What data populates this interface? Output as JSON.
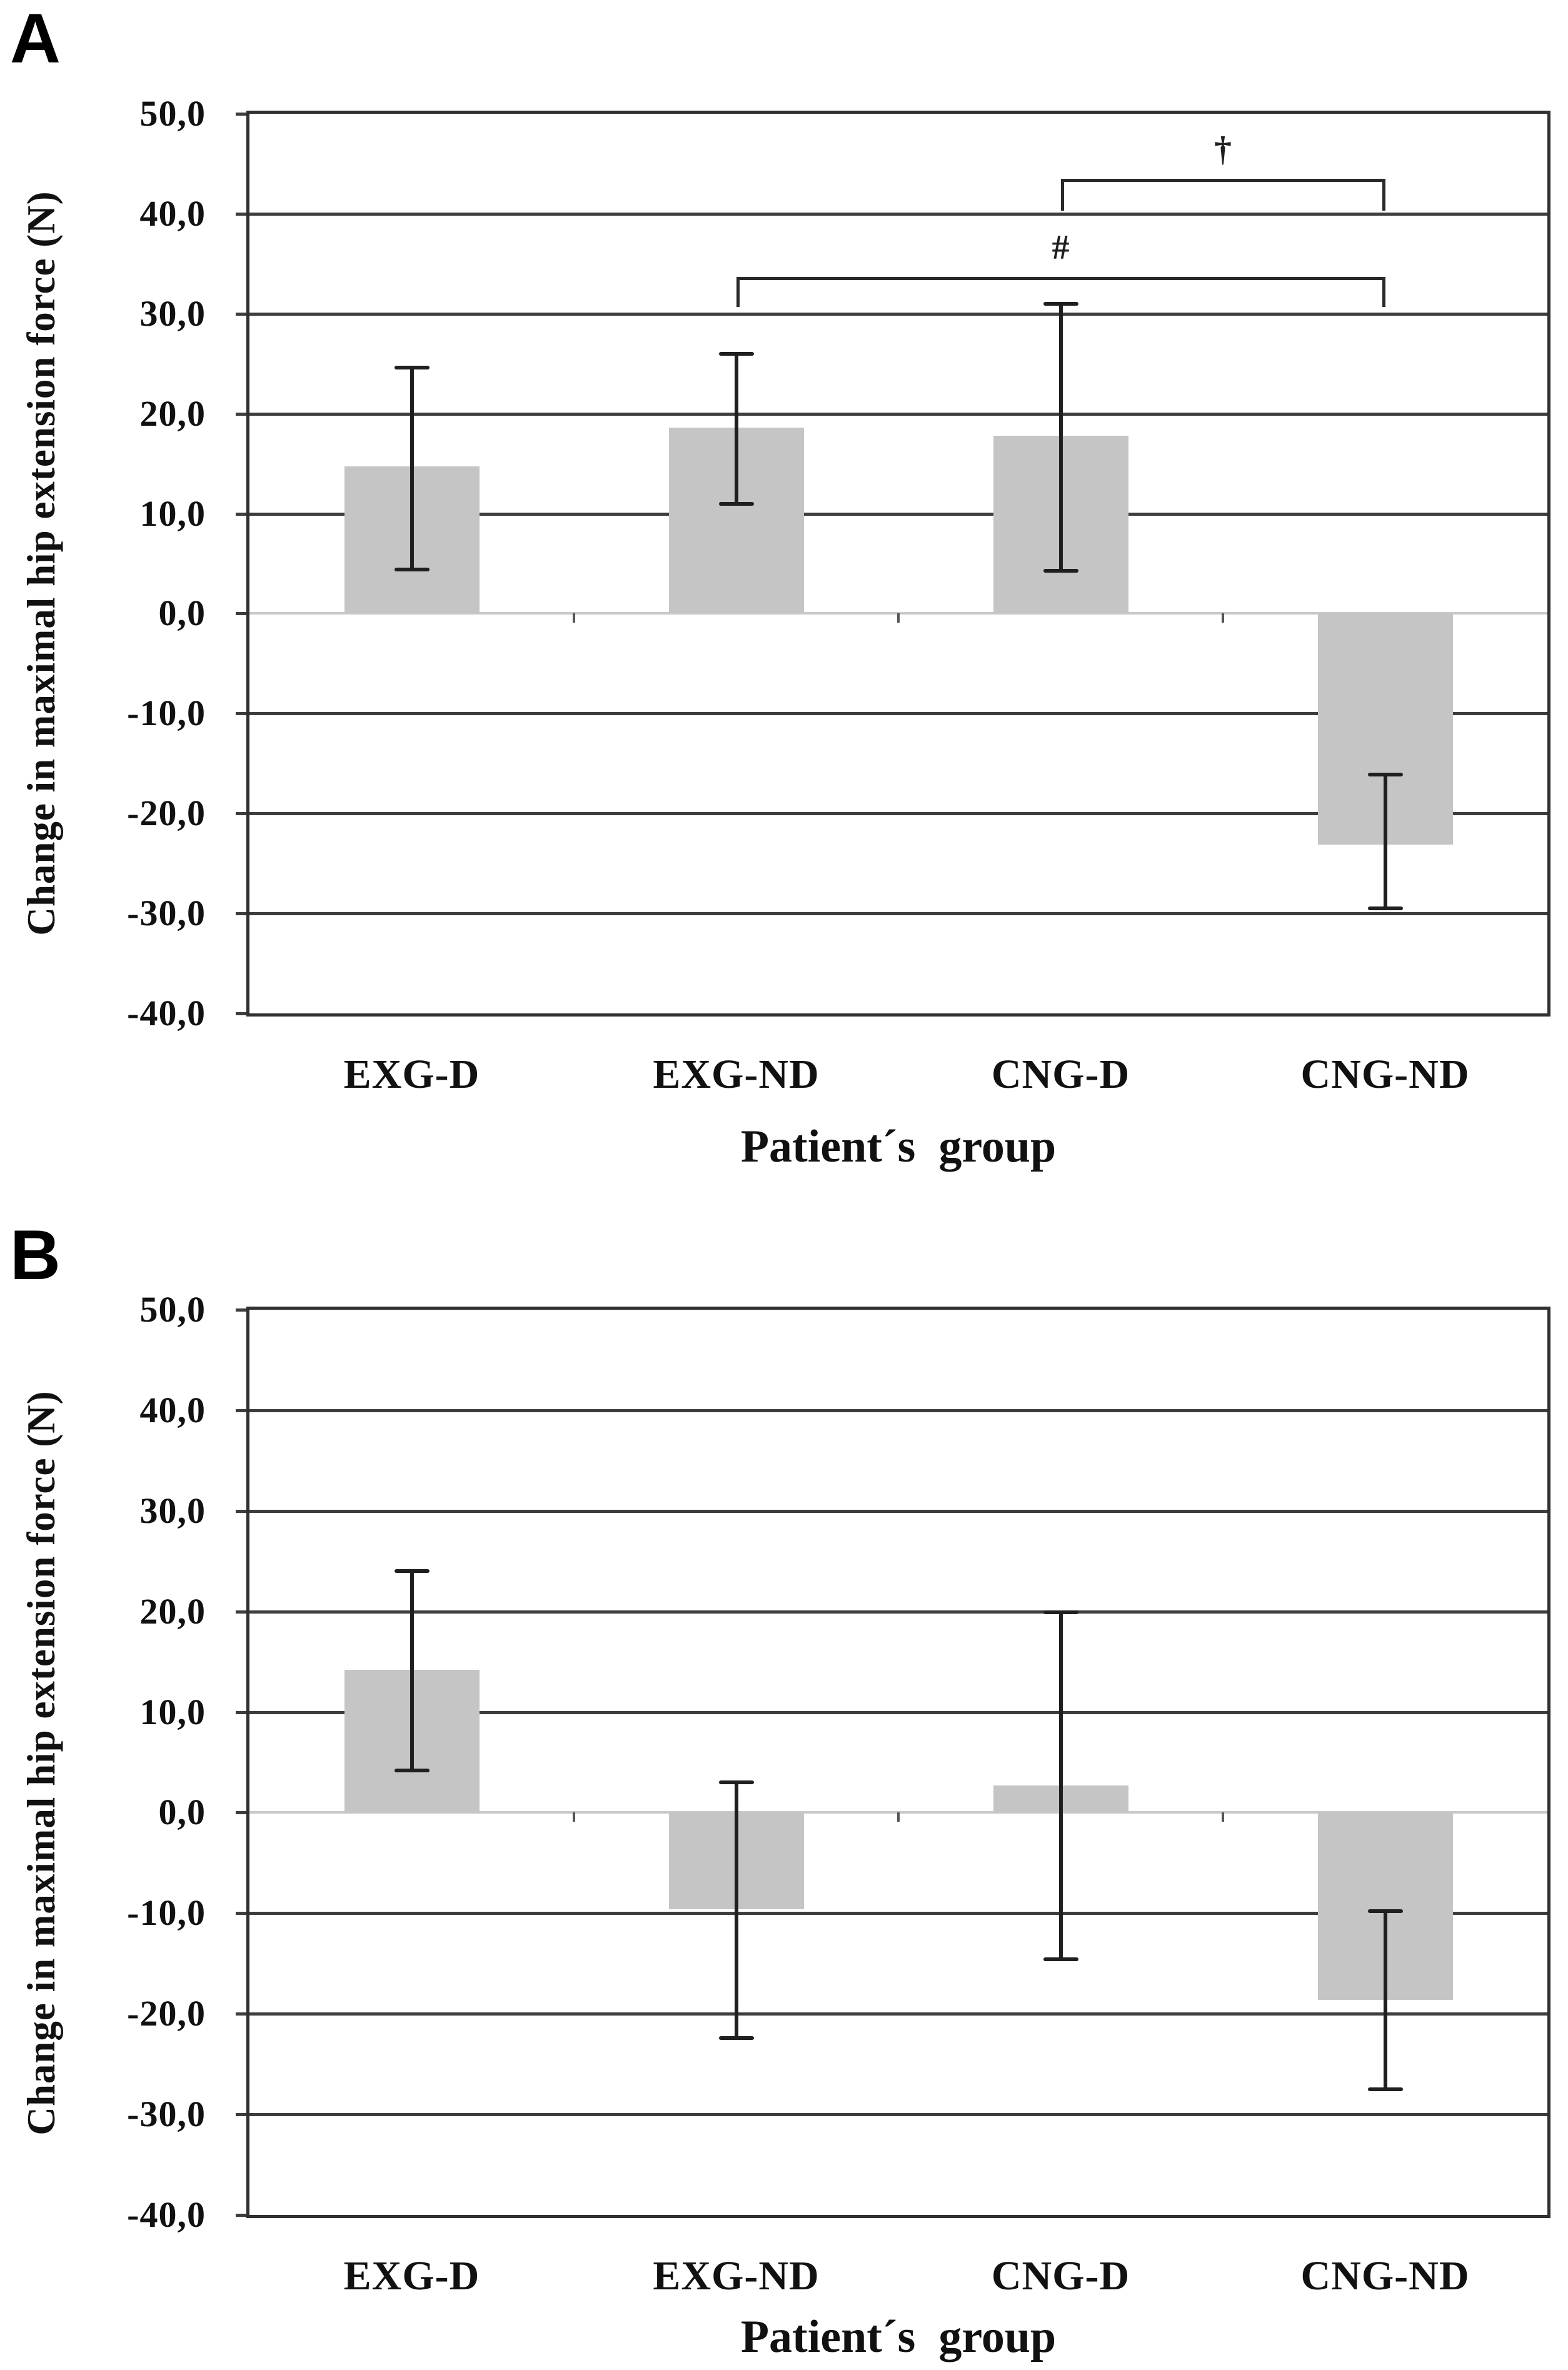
{
  "figure": {
    "panels": [
      {
        "label": "A"
      },
      {
        "label": "B"
      }
    ],
    "ylabel": "Change in maximal hip extension force (N)",
    "xlabel": "Patient´s  group",
    "colors": {
      "bar_fill": "#c5c5c5",
      "gridline": "#3d3d3d",
      "zero_line": "#c9c9c9",
      "error_bar": "#1f1f1f",
      "text": "#111111"
    }
  },
  "chart_data": [
    {
      "type": "bar",
      "panel": "A",
      "xlabel": "Patient´s  group",
      "ylabel": "Change in maximal hip extension force (N)",
      "categories": [
        "EXG-D",
        "EXG-ND",
        "CNG-D",
        "CNG-ND"
      ],
      "values": [
        14.7,
        18.6,
        17.8,
        -23.1
      ],
      "error_high": [
        24.6,
        26.0,
        31.0,
        -16.1
      ],
      "error_low": [
        4.4,
        11.0,
        4.3,
        -29.5
      ],
      "ylim": [
        -40,
        50
      ],
      "ytick_step": 10,
      "ytick_labels": [
        "50,0",
        "40,0",
        "30,0",
        "20,0",
        "10,0",
        "0,0",
        "-10,0",
        "-20,0",
        "-30,0",
        "-40,0"
      ],
      "grid": true,
      "annotations": [
        {
          "symbol": "†",
          "from_category": "CNG-D",
          "to_category": "CNG-ND",
          "from_index": 2,
          "to_index": 3,
          "bracket_y": 43.5,
          "bracket_tick_y": 40.3
        },
        {
          "symbol": "#",
          "from_category": "EXG-ND",
          "to_category": "CNG-ND",
          "from_index": 1,
          "to_index": 3,
          "bracket_y": 33.7,
          "bracket_tick_y": 30.7
        }
      ]
    },
    {
      "type": "bar",
      "panel": "B",
      "xlabel": "Patient´s  group",
      "ylabel": "Change in maximal hip extension force (N)",
      "categories": [
        "EXG-D",
        "EXG-ND",
        "CNG-D",
        "CNG-ND"
      ],
      "values": [
        14.2,
        -9.6,
        2.7,
        -18.6
      ],
      "error_high": [
        24.0,
        3.0,
        19.9,
        -9.8
      ],
      "error_low": [
        4.2,
        -22.4,
        -14.6,
        -27.5
      ],
      "ylim": [
        -40,
        50
      ],
      "ytick_step": 10,
      "ytick_labels": [
        "50,0",
        "40,0",
        "30,0",
        "20,0",
        "10,0",
        "0,0",
        "-10,0",
        "-20,0",
        "-30,0",
        "-40,0"
      ],
      "grid": true,
      "annotations": []
    }
  ]
}
